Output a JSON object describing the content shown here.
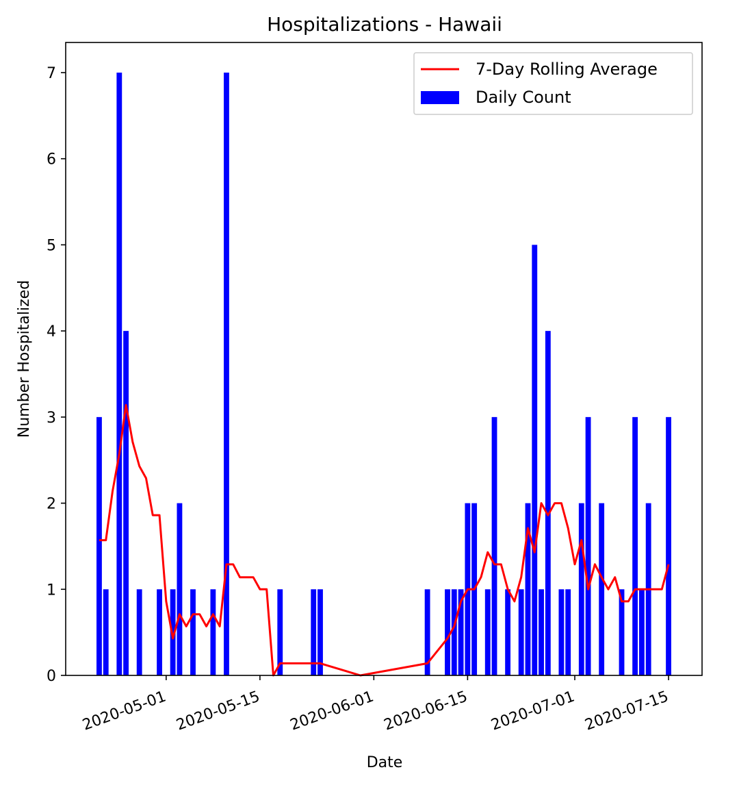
{
  "chart_data": {
    "type": "bar",
    "title": "Hospitalizations - Hawaii",
    "xlabel": "Date",
    "ylabel": "Number Hospitalized",
    "ylim": [
      0,
      7.35
    ],
    "xlim": [
      "2020-04-16",
      "2020-07-20"
    ],
    "x_ticks": [
      "2020-05-01",
      "2020-05-15",
      "2020-06-01",
      "2020-06-15",
      "2020-07-01",
      "2020-07-15"
    ],
    "y_ticks": [
      "0",
      "1",
      "2",
      "3",
      "4",
      "5",
      "6",
      "7"
    ],
    "grid": false,
    "legend_position": "top-right",
    "series": [
      {
        "name": "Daily Count",
        "type": "bar",
        "color": "#0000ff",
        "points": [
          {
            "date": "2020-04-21",
            "value": 3
          },
          {
            "date": "2020-04-22",
            "value": 1
          },
          {
            "date": "2020-04-24",
            "value": 7
          },
          {
            "date": "2020-04-25",
            "value": 4
          },
          {
            "date": "2020-04-27",
            "value": 1
          },
          {
            "date": "2020-04-30",
            "value": 1
          },
          {
            "date": "2020-05-02",
            "value": 1
          },
          {
            "date": "2020-05-03",
            "value": 2
          },
          {
            "date": "2020-05-05",
            "value": 1
          },
          {
            "date": "2020-05-08",
            "value": 1
          },
          {
            "date": "2020-05-10",
            "value": 7
          },
          {
            "date": "2020-05-18",
            "value": 1
          },
          {
            "date": "2020-05-23",
            "value": 1
          },
          {
            "date": "2020-05-24",
            "value": 1
          },
          {
            "date": "2020-06-09",
            "value": 1
          },
          {
            "date": "2020-06-12",
            "value": 1
          },
          {
            "date": "2020-06-13",
            "value": 1
          },
          {
            "date": "2020-06-14",
            "value": 1
          },
          {
            "date": "2020-06-15",
            "value": 2
          },
          {
            "date": "2020-06-16",
            "value": 2
          },
          {
            "date": "2020-06-18",
            "value": 1
          },
          {
            "date": "2020-06-19",
            "value": 3
          },
          {
            "date": "2020-06-21",
            "value": 1
          },
          {
            "date": "2020-06-23",
            "value": 1
          },
          {
            "date": "2020-06-24",
            "value": 2
          },
          {
            "date": "2020-06-25",
            "value": 5
          },
          {
            "date": "2020-06-26",
            "value": 1
          },
          {
            "date": "2020-06-27",
            "value": 4
          },
          {
            "date": "2020-06-29",
            "value": 1
          },
          {
            "date": "2020-06-30",
            "value": 1
          },
          {
            "date": "2020-07-02",
            "value": 2
          },
          {
            "date": "2020-07-03",
            "value": 3
          },
          {
            "date": "2020-07-05",
            "value": 2
          },
          {
            "date": "2020-07-08",
            "value": 1
          },
          {
            "date": "2020-07-10",
            "value": 3
          },
          {
            "date": "2020-07-11",
            "value": 1
          },
          {
            "date": "2020-07-12",
            "value": 2
          },
          {
            "date": "2020-07-15",
            "value": 3
          }
        ]
      },
      {
        "name": "7-Day Rolling Average",
        "type": "line",
        "color": "#ff0000",
        "x": [
          "2020-04-21",
          "2020-04-22",
          "2020-04-23",
          "2020-04-24",
          "2020-04-25",
          "2020-04-26",
          "2020-04-27",
          "2020-04-28",
          "2020-04-29",
          "2020-04-30",
          "2020-05-01",
          "2020-05-02",
          "2020-05-03",
          "2020-05-04",
          "2020-05-05",
          "2020-05-06",
          "2020-05-07",
          "2020-05-08",
          "2020-05-09",
          "2020-05-10",
          "2020-05-11",
          "2020-05-12",
          "2020-05-13",
          "2020-05-14",
          "2020-05-15",
          "2020-05-16",
          "2020-05-17",
          "2020-05-18",
          "2020-05-23",
          "2020-05-24",
          "2020-05-30",
          "2020-06-09",
          "2020-06-12",
          "2020-06-13",
          "2020-06-14",
          "2020-06-15",
          "2020-06-16",
          "2020-06-17",
          "2020-06-18",
          "2020-06-19",
          "2020-06-20",
          "2020-06-21",
          "2020-06-22",
          "2020-06-23",
          "2020-06-24",
          "2020-06-25",
          "2020-06-26",
          "2020-06-27",
          "2020-06-28",
          "2020-06-29",
          "2020-06-30",
          "2020-07-01",
          "2020-07-02",
          "2020-07-03",
          "2020-07-04",
          "2020-07-05",
          "2020-07-06",
          "2020-07-07",
          "2020-07-08",
          "2020-07-09",
          "2020-07-10",
          "2020-07-11",
          "2020-07-12",
          "2020-07-13",
          "2020-07-14",
          "2020-07-15"
        ],
        "values": [
          1.57,
          1.57,
          2.14,
          2.57,
          3.14,
          2.71,
          2.43,
          2.29,
          1.86,
          1.86,
          0.86,
          0.43,
          0.71,
          0.57,
          0.71,
          0.71,
          0.57,
          0.71,
          0.57,
          1.29,
          1.29,
          1.14,
          1.14,
          1.14,
          1.0,
          1.0,
          0.0,
          0.14,
          0.14,
          0.14,
          0.0,
          0.14,
          0.43,
          0.57,
          0.86,
          1.0,
          1.0,
          1.14,
          1.43,
          1.29,
          1.29,
          1.0,
          0.86,
          1.14,
          1.71,
          1.43,
          2.0,
          1.86,
          2.0,
          2.0,
          1.71,
          1.29,
          1.57,
          1.0,
          1.29,
          1.14,
          1.0,
          1.14,
          0.86,
          0.86,
          1.0,
          1.0,
          1.0,
          1.0,
          1.0,
          1.29
        ]
      }
    ]
  }
}
